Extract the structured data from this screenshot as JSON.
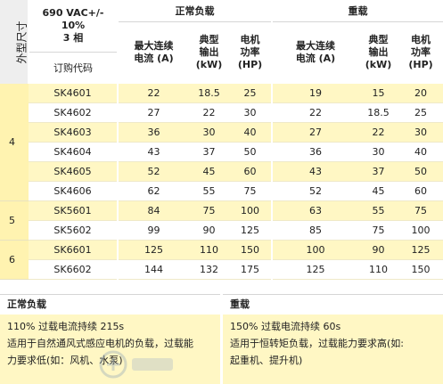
{
  "header": {
    "size_label": "外型尺寸",
    "spec_line1": "690 VAC+/- 10%",
    "spec_line2": "3 相",
    "order_code_label": "订购代码",
    "normal_duty": "正常负载",
    "heavy_duty": "重载",
    "col_current_1": "最大连续",
    "col_current_2": "电流 (A)",
    "col_output_1": "典型",
    "col_output_2": "输出",
    "col_output_3": "(kW)",
    "col_power_1": "电机",
    "col_power_2": "功率",
    "col_power_3": "(HP)"
  },
  "sizes": [
    "4",
    "5",
    "6"
  ],
  "rows": [
    {
      "code": "SK4601",
      "n_a": "22",
      "n_kw": "18.5",
      "n_hp": "25",
      "h_a": "19",
      "h_kw": "15",
      "h_hp": "20"
    },
    {
      "code": "SK4602",
      "n_a": "27",
      "n_kw": "22",
      "n_hp": "30",
      "h_a": "22",
      "h_kw": "18.5",
      "h_hp": "25"
    },
    {
      "code": "SK4603",
      "n_a": "36",
      "n_kw": "30",
      "n_hp": "40",
      "h_a": "27",
      "h_kw": "22",
      "h_hp": "30"
    },
    {
      "code": "SK4604",
      "n_a": "43",
      "n_kw": "37",
      "n_hp": "50",
      "h_a": "36",
      "h_kw": "30",
      "h_hp": "40"
    },
    {
      "code": "SK4605",
      "n_a": "52",
      "n_kw": "45",
      "n_hp": "60",
      "h_a": "43",
      "h_kw": "37",
      "h_hp": "50"
    },
    {
      "code": "SK4606",
      "n_a": "62",
      "n_kw": "55",
      "n_hp": "75",
      "h_a": "52",
      "h_kw": "45",
      "h_hp": "60"
    },
    {
      "code": "SK5601",
      "n_a": "84",
      "n_kw": "75",
      "n_hp": "100",
      "h_a": "63",
      "h_kw": "55",
      "h_hp": "75"
    },
    {
      "code": "SK5602",
      "n_a": "99",
      "n_kw": "90",
      "n_hp": "125",
      "h_a": "85",
      "h_kw": "75",
      "h_hp": "100"
    },
    {
      "code": "SK6601",
      "n_a": "125",
      "n_kw": "110",
      "n_hp": "150",
      "h_a": "100",
      "h_kw": "90",
      "h_hp": "125"
    },
    {
      "code": "SK6602",
      "n_a": "144",
      "n_kw": "132",
      "n_hp": "175",
      "h_a": "125",
      "h_kw": "110",
      "h_hp": "150"
    }
  ],
  "notes": {
    "normal_title": "正常负载",
    "normal_line1": "110% 过载电流持续 215s",
    "normal_line2": "适用于自然通风式感应电机的负载，过载能",
    "normal_line3": "力要求低(如：风机、水泵)",
    "heavy_title": "重载",
    "heavy_line1": "150% 过载电流持续 60s",
    "heavy_line2": "适用于恒转矩负载，过载能力要求高(如:",
    "heavy_line3": "起重机、提升机)"
  },
  "colors": {
    "highlight": "#fff7c4",
    "size_band": "#fff3b0",
    "header_band": "#eeeeee"
  }
}
